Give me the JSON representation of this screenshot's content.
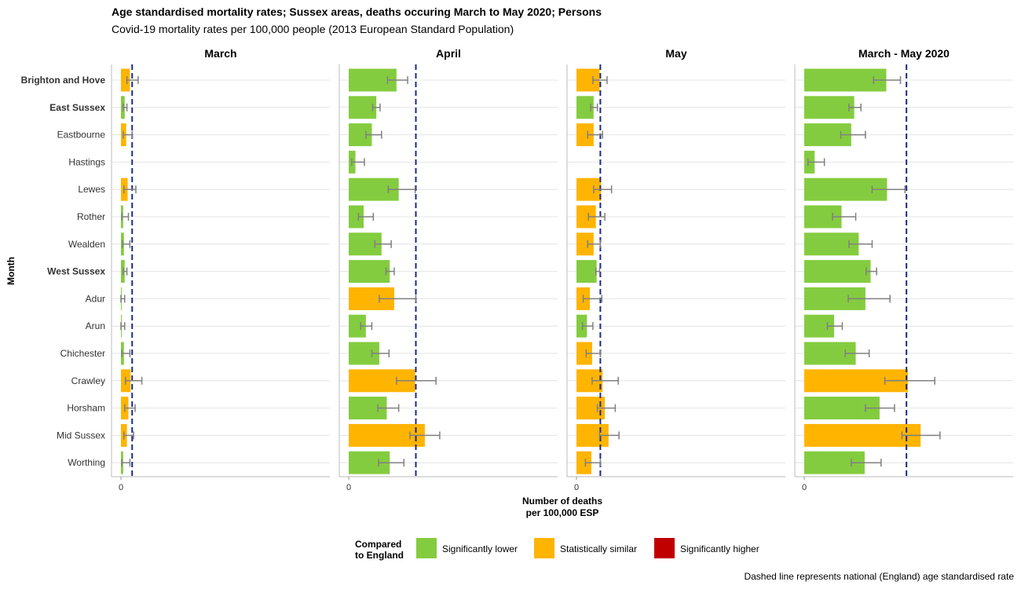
{
  "chart_data": {
    "type": "bar",
    "orientation": "horizontal",
    "title": "Age standardised mortality rates; Sussex areas, deaths occuring March to May 2020; Persons",
    "subtitle": "Covid-19 mortality rates per 100,000 people (2013 European Standard Population)",
    "ylabel": "Month",
    "xlabel_line1": "Number of deaths",
    "xlabel_line2": "per 100,000 ESP",
    "x_tick_label": "0",
    "caption": "Dashed line represents national (England) age standardised rate",
    "legend": {
      "title_line1": "Compared",
      "title_line2": "to England",
      "position": "bottom",
      "items": [
        {
          "key": "lower",
          "label": "Significantly lower",
          "color": "#84cc3f"
        },
        {
          "key": "similar",
          "label": "Statistically similar",
          "color": "#ffb400"
        },
        {
          "key": "higher",
          "label": "Significantly higher",
          "color": "#c00000"
        }
      ]
    },
    "categories": [
      "Brighton and Hove",
      "East Sussex",
      "Eastbourne",
      "Hastings",
      "Lewes",
      "Rother",
      "Wealden",
      "West Sussex",
      "Adur",
      "Arun",
      "Chichester",
      "Crawley",
      "Horsham",
      "Mid Sussex",
      "Worthing"
    ],
    "bold_categories": [
      "Brighton and Hove",
      "East Sussex",
      "West Sussex"
    ],
    "xlim": [
      0,
      280
    ],
    "facets": [
      {
        "name": "March",
        "england_rate": 15,
        "values": [
          12,
          5,
          7,
          null,
          9,
          3,
          4,
          5,
          0.5,
          0.5,
          4,
          13,
          10,
          8,
          3
        ],
        "lower_ci": [
          8,
          3,
          3,
          null,
          4,
          1,
          2,
          3,
          0,
          0,
          1,
          6,
          5,
          4,
          1
        ],
        "upper_ci": [
          23,
          8,
          15,
          null,
          20,
          10,
          12,
          8,
          5,
          5,
          12,
          28,
          19,
          17,
          12
        ],
        "status": [
          "similar",
          "lower",
          "similar",
          null,
          "similar",
          "lower",
          "lower",
          "lower",
          "lower",
          "lower",
          "lower",
          "similar",
          "similar",
          "similar",
          "lower"
        ]
      },
      {
        "name": "April",
        "england_rate": 90,
        "values": [
          64,
          37,
          31,
          9,
          67,
          20,
          44,
          55,
          61,
          23,
          41,
          89,
          51,
          102,
          55
        ],
        "lower_ci": [
          52,
          32,
          23,
          4,
          53,
          13,
          35,
          50,
          41,
          16,
          31,
          64,
          39,
          82,
          40
        ],
        "upper_ci": [
          79,
          42,
          44,
          21,
          89,
          33,
          57,
          61,
          90,
          31,
          54,
          117,
          67,
          122,
          74
        ],
        "status": [
          "lower",
          "lower",
          "lower",
          "lower",
          "lower",
          "lower",
          "lower",
          "lower",
          "similar",
          "lower",
          "lower",
          "similar",
          "lower",
          "similar",
          "lower"
        ]
      },
      {
        "name": "May",
        "england_rate": 32,
        "values": [
          31,
          23,
          23,
          null,
          33,
          26,
          23,
          27,
          18,
          14,
          21,
          35,
          38,
          43,
          20
        ],
        "lower_ci": [
          22,
          19,
          15,
          null,
          23,
          16,
          15,
          26,
          9,
          8,
          13,
          21,
          28,
          31,
          12
        ],
        "upper_ci": [
          41,
          28,
          35,
          null,
          47,
          38,
          32,
          31,
          34,
          22,
          32,
          56,
          52,
          57,
          32
        ],
        "status": [
          "similar",
          "lower",
          "similar",
          null,
          "similar",
          "similar",
          "similar",
          "lower",
          "similar",
          "lower",
          "similar",
          "similar",
          "similar",
          "similar",
          "similar"
        ]
      },
      {
        "name": "March - May 2020",
        "england_rate": 137,
        "values": [
          110,
          67,
          63,
          14,
          111,
          50,
          73,
          89,
          82,
          40,
          69,
          139,
          101,
          156,
          81
        ],
        "lower_ci": [
          93,
          60,
          49,
          5,
          91,
          38,
          60,
          83,
          59,
          31,
          55,
          108,
          82,
          131,
          63
        ],
        "upper_ci": [
          129,
          76,
          82,
          27,
          135,
          69,
          91,
          97,
          115,
          51,
          87,
          175,
          121,
          182,
          103
        ],
        "status": [
          "lower",
          "lower",
          "lower",
          "lower",
          "lower",
          "lower",
          "lower",
          "lower",
          "lower",
          "lower",
          "lower",
          "similar",
          "lower",
          "similar",
          "lower"
        ]
      }
    ]
  }
}
